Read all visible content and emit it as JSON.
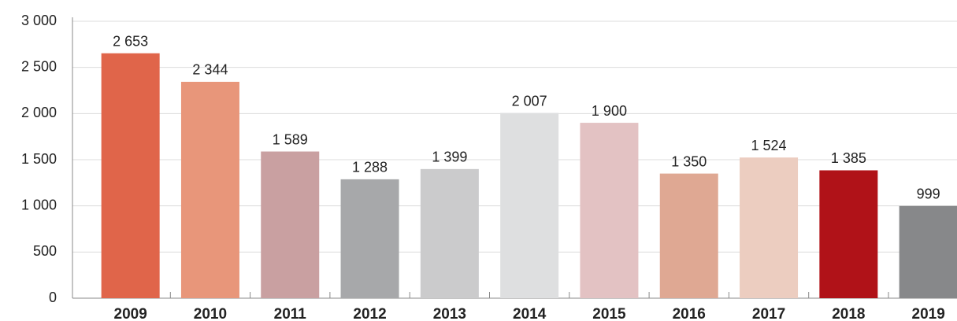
{
  "chart_data": {
    "type": "bar",
    "categories": [
      "2009",
      "2010",
      "2011",
      "2012",
      "2013",
      "2014",
      "2015",
      "2016",
      "2017",
      "2018",
      "2019"
    ],
    "values": [
      2653,
      2344,
      1589,
      1288,
      1399,
      2007,
      1900,
      1350,
      1524,
      1385,
      999
    ],
    "value_labels": [
      "2 653",
      "2 344",
      "1 589",
      "1 288",
      "1 399",
      "2 007",
      "1 900",
      "1 350",
      "1 524",
      "1 385",
      "999"
    ],
    "colors": [
      "#e0654a",
      "#e8967a",
      "#c9a0a1",
      "#a7a8aa",
      "#cbcbcc",
      "#dedfe0",
      "#e3c2c3",
      "#dfa893",
      "#eccdc0",
      "#b01218",
      "#87888a"
    ],
    "ylim": [
      0,
      3000
    ],
    "yticks": [
      0,
      500,
      {
        "value": 1000,
        "label": "1 000"
      },
      {
        "value": 1500,
        "label": "1 500"
      },
      {
        "value": 2000,
        "label": "2 000"
      },
      {
        "value": 2500,
        "label": "2 500"
      },
      {
        "value": 3000,
        "label": "3 000"
      }
    ],
    "grid": true
  }
}
